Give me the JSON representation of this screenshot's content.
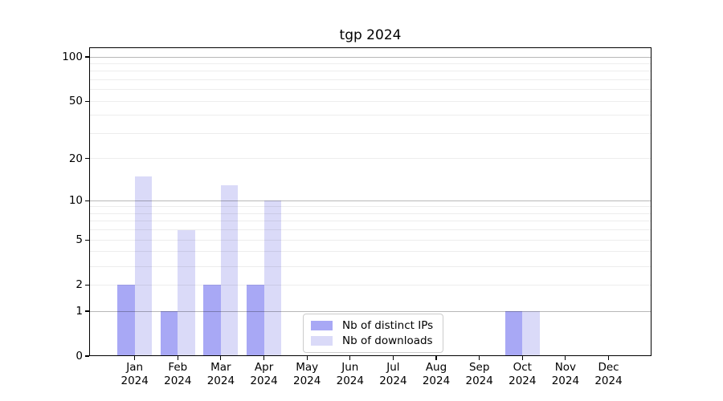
{
  "chart_data": {
    "type": "bar",
    "title": "tgp 2024",
    "categories": [
      "Jan 2024",
      "Feb 2024",
      "Mar 2024",
      "Apr 2024",
      "May 2024",
      "Jun 2024",
      "Jul 2024",
      "Aug 2024",
      "Sep 2024",
      "Oct 2024",
      "Nov 2024",
      "Dec 2024"
    ],
    "series": [
      {
        "name": "Nb of distinct IPs",
        "color": "#a8a8f5",
        "values": [
          2,
          1,
          2,
          2,
          0,
          0,
          0,
          0,
          0,
          1,
          0,
          0
        ]
      },
      {
        "name": "Nb of downloads",
        "color": "#dadaf8",
        "values": [
          15,
          6,
          13,
          10,
          0,
          0,
          0,
          0,
          0,
          1,
          0,
          0
        ]
      }
    ],
    "y_axis": {
      "scale": "log1p",
      "limits": [
        0,
        100
      ],
      "ticks": [
        0,
        1,
        2,
        5,
        10,
        20,
        50,
        100
      ],
      "major_gridlines": [
        1,
        10,
        100
      ],
      "minor_gridlines": [
        2,
        3,
        4,
        5,
        6,
        7,
        8,
        9,
        20,
        30,
        40,
        50,
        60,
        70,
        80,
        90
      ]
    },
    "grid": "horizontal",
    "legend": {
      "position": "inside-bottom-center"
    },
    "colors": {
      "axis": "#000000",
      "major_grid": "rgba(0,0,0,0.28)",
      "minor_grid": "rgba(0,0,0,0.07)",
      "legend_border": "#cccccc"
    }
  }
}
